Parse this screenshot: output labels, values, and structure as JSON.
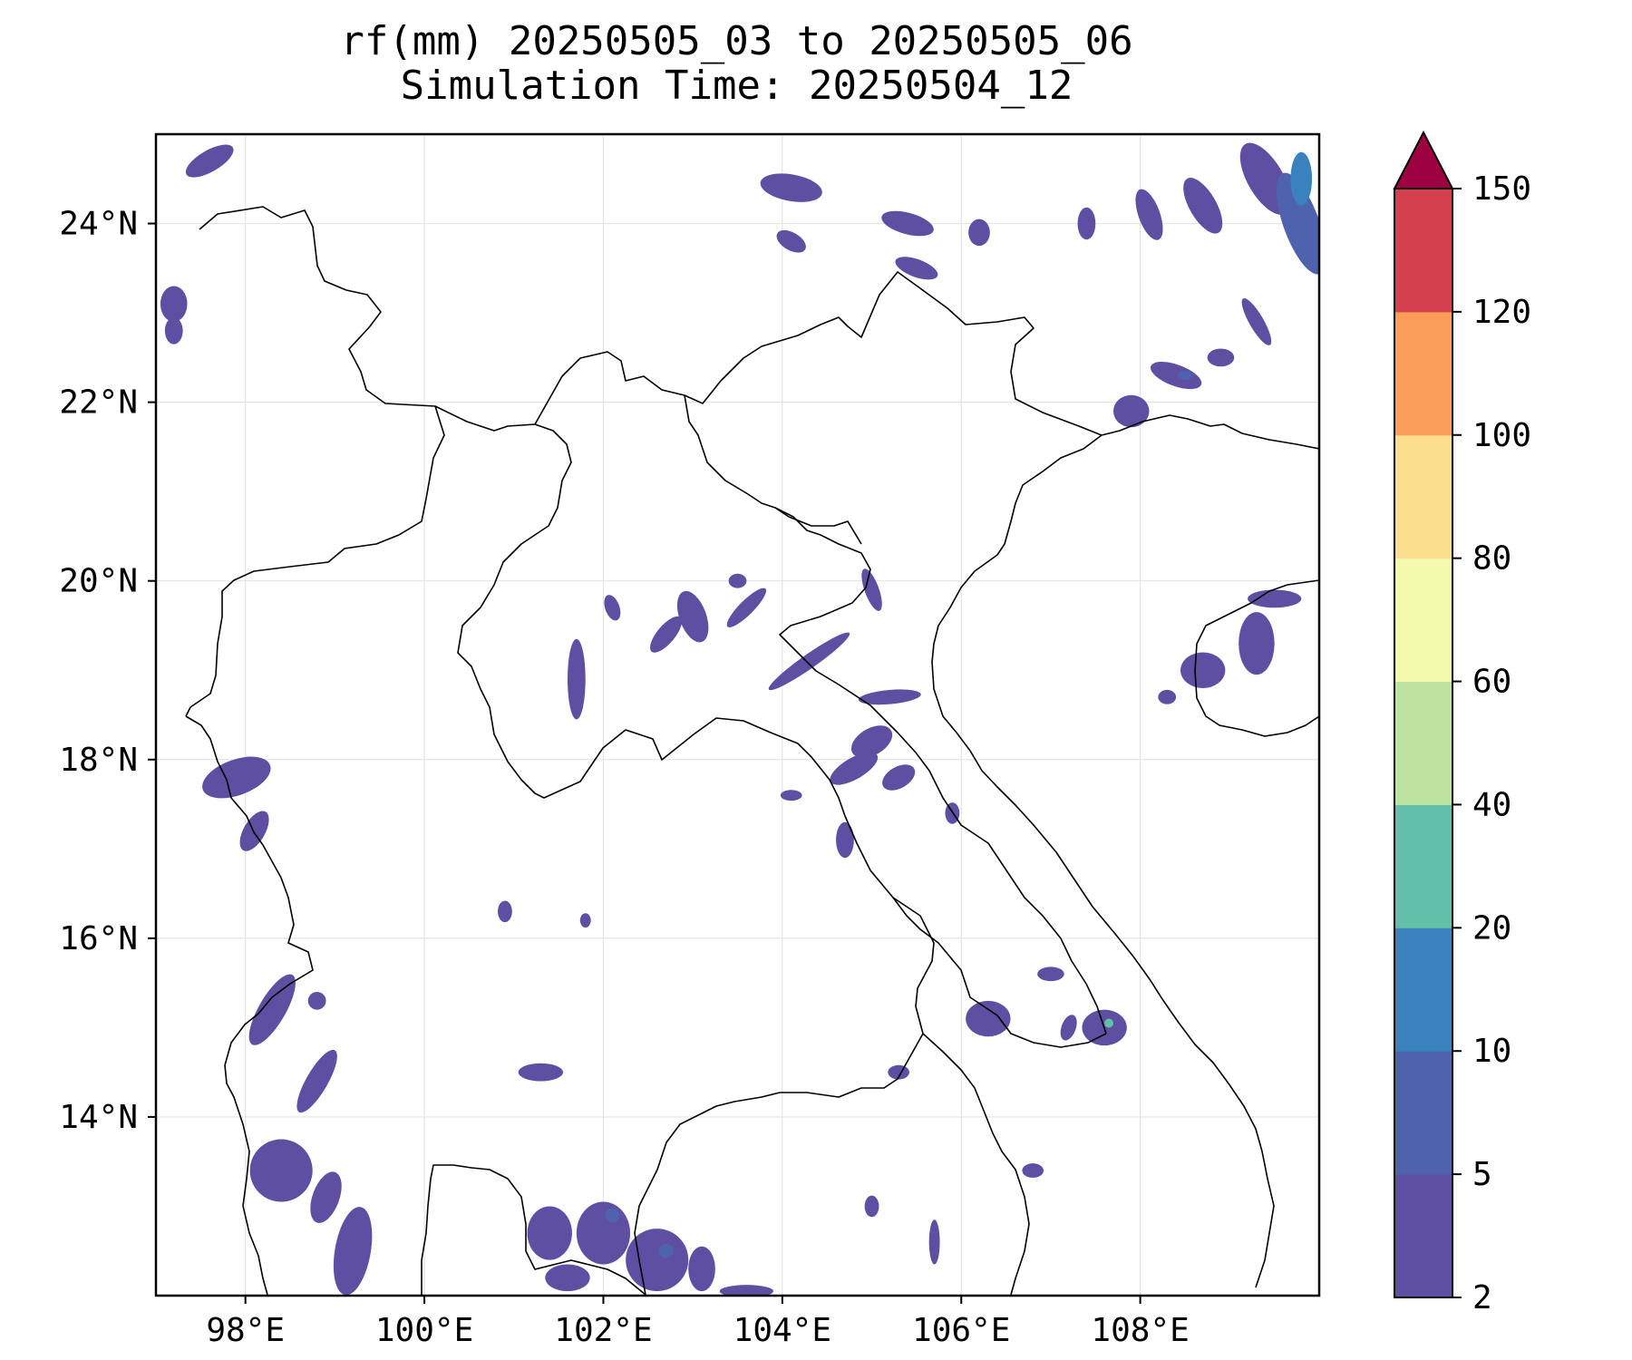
{
  "title": {
    "line1": "rf(mm) 20250505_03 to 20250505_06",
    "line2": "Simulation Time: 20250504_12"
  },
  "map": {
    "lon_range": [
      97.0,
      110.0
    ],
    "lat_range": [
      12.0,
      25.0
    ],
    "x_ticks": [
      {
        "value": 98,
        "label": "98°E"
      },
      {
        "value": 100,
        "label": "100°E"
      },
      {
        "value": 102,
        "label": "102°E"
      },
      {
        "value": 104,
        "label": "104°E"
      },
      {
        "value": 106,
        "label": "106°E"
      },
      {
        "value": 108,
        "label": "108°E"
      }
    ],
    "y_ticks": [
      {
        "value": 14,
        "label": "14°N"
      },
      {
        "value": 16,
        "label": "16°N"
      },
      {
        "value": 18,
        "label": "18°N"
      },
      {
        "value": 20,
        "label": "20°N"
      },
      {
        "value": 22,
        "label": "22°N"
      },
      {
        "value": 24,
        "label": "24°N"
      }
    ],
    "gridlines": true
  },
  "colorbar": {
    "levels": [
      {
        "label": "2",
        "color": "#5e4fa2"
      },
      {
        "label": "5",
        "color": "#4f62ad"
      },
      {
        "label": "10",
        "color": "#3a82bd"
      },
      {
        "label": "20",
        "color": "#62bfa8"
      },
      {
        "label": "40",
        "color": "#bde3a1"
      },
      {
        "label": "60",
        "color": "#f3faae"
      },
      {
        "label": "80",
        "color": "#fbde8c"
      },
      {
        "label": "100",
        "color": "#f99d59"
      },
      {
        "label": "120",
        "color": "#d5404e"
      }
    ],
    "top_label": "150",
    "extend_color": "#9e0142"
  },
  "rain_cells": [
    {
      "lon": 104.1,
      "lat": 24.4,
      "rx": 0.35,
      "ry": 0.15,
      "angle": 10,
      "level": 0
    },
    {
      "lon": 104.1,
      "lat": 23.8,
      "rx": 0.18,
      "ry": 0.1,
      "angle": 30,
      "level": 0
    },
    {
      "lon": 105.4,
      "lat": 24.0,
      "rx": 0.3,
      "ry": 0.12,
      "angle": 15,
      "level": 0
    },
    {
      "lon": 105.5,
      "lat": 23.5,
      "rx": 0.25,
      "ry": 0.1,
      "angle": 20,
      "level": 0
    },
    {
      "lon": 106.2,
      "lat": 23.9,
      "rx": 0.12,
      "ry": 0.15,
      "angle": 0,
      "level": 0
    },
    {
      "lon": 107.4,
      "lat": 24.0,
      "rx": 0.1,
      "ry": 0.18,
      "angle": 0,
      "level": 0
    },
    {
      "lon": 108.1,
      "lat": 24.1,
      "rx": 0.12,
      "ry": 0.3,
      "angle": -20,
      "level": 0
    },
    {
      "lon": 108.7,
      "lat": 24.2,
      "rx": 0.15,
      "ry": 0.35,
      "angle": -30,
      "level": 0
    },
    {
      "lon": 109.4,
      "lat": 24.5,
      "rx": 0.2,
      "ry": 0.45,
      "angle": -30,
      "level": 0
    },
    {
      "lon": 109.8,
      "lat": 24.0,
      "rx": 0.2,
      "ry": 0.6,
      "angle": -20,
      "level": 1
    },
    {
      "lon": 109.8,
      "lat": 24.5,
      "rx": 0.12,
      "ry": 0.3,
      "angle": 0,
      "level": 2
    },
    {
      "lon": 109.3,
      "lat": 22.9,
      "rx": 0.08,
      "ry": 0.3,
      "angle": -30,
      "level": 0
    },
    {
      "lon": 108.9,
      "lat": 22.5,
      "rx": 0.15,
      "ry": 0.1,
      "angle": 0,
      "level": 0
    },
    {
      "lon": 108.4,
      "lat": 22.3,
      "rx": 0.3,
      "ry": 0.12,
      "angle": 20,
      "level": 0
    },
    {
      "lon": 108.5,
      "lat": 22.3,
      "rx": 0.08,
      "ry": 0.05,
      "angle": 0,
      "level": 1
    },
    {
      "lon": 107.9,
      "lat": 21.9,
      "rx": 0.2,
      "ry": 0.18,
      "angle": 0,
      "level": 0
    },
    {
      "lon": 97.6,
      "lat": 24.7,
      "rx": 0.3,
      "ry": 0.12,
      "angle": -30,
      "level": 0
    },
    {
      "lon": 97.2,
      "lat": 23.1,
      "rx": 0.15,
      "ry": 0.2,
      "angle": 0,
      "level": 0
    },
    {
      "lon": 97.2,
      "lat": 22.8,
      "rx": 0.1,
      "ry": 0.15,
      "angle": 0,
      "level": 0
    },
    {
      "lon": 102.1,
      "lat": 19.7,
      "rx": 0.08,
      "ry": 0.15,
      "angle": -20,
      "level": 0
    },
    {
      "lon": 101.7,
      "lat": 18.9,
      "rx": 0.1,
      "ry": 0.45,
      "angle": 0,
      "level": 0
    },
    {
      "lon": 102.7,
      "lat": 19.4,
      "rx": 0.25,
      "ry": 0.1,
      "angle": -50,
      "level": 0
    },
    {
      "lon": 103.0,
      "lat": 19.6,
      "rx": 0.15,
      "ry": 0.3,
      "angle": -20,
      "level": 0
    },
    {
      "lon": 103.6,
      "lat": 19.7,
      "rx": 0.3,
      "ry": 0.08,
      "angle": -45,
      "level": 0
    },
    {
      "lon": 104.3,
      "lat": 19.1,
      "rx": 0.55,
      "ry": 0.08,
      "angle": -35,
      "level": 0
    },
    {
      "lon": 105.2,
      "lat": 18.7,
      "rx": 0.35,
      "ry": 0.08,
      "angle": -5,
      "level": 0
    },
    {
      "lon": 105.0,
      "lat": 18.2,
      "rx": 0.25,
      "ry": 0.15,
      "angle": -30,
      "level": 0
    },
    {
      "lon": 104.8,
      "lat": 17.9,
      "rx": 0.3,
      "ry": 0.12,
      "angle": -30,
      "level": 0
    },
    {
      "lon": 105.3,
      "lat": 17.8,
      "rx": 0.2,
      "ry": 0.12,
      "angle": -30,
      "level": 0
    },
    {
      "lon": 104.1,
      "lat": 17.6,
      "rx": 0.12,
      "ry": 0.06,
      "angle": 0,
      "level": 0
    },
    {
      "lon": 104.7,
      "lat": 17.1,
      "rx": 0.1,
      "ry": 0.2,
      "angle": 0,
      "level": 0
    },
    {
      "lon": 105.9,
      "lat": 17.4,
      "rx": 0.08,
      "ry": 0.12,
      "angle": 0,
      "level": 0
    },
    {
      "lon": 103.5,
      "lat": 20.0,
      "rx": 0.1,
      "ry": 0.08,
      "angle": 0,
      "level": 0
    },
    {
      "lon": 105.0,
      "lat": 19.9,
      "rx": 0.08,
      "ry": 0.25,
      "angle": -20,
      "level": 0
    },
    {
      "lon": 97.9,
      "lat": 17.8,
      "rx": 0.4,
      "ry": 0.2,
      "angle": -20,
      "level": 0
    },
    {
      "lon": 98.1,
      "lat": 17.2,
      "rx": 0.12,
      "ry": 0.25,
      "angle": 30,
      "level": 0
    },
    {
      "lon": 98.3,
      "lat": 15.2,
      "rx": 0.15,
      "ry": 0.45,
      "angle": 30,
      "level": 0
    },
    {
      "lon": 98.8,
      "lat": 14.4,
      "rx": 0.12,
      "ry": 0.4,
      "angle": 30,
      "level": 0
    },
    {
      "lon": 98.4,
      "lat": 13.4,
      "rx": 0.35,
      "ry": 0.35,
      "angle": 0,
      "level": 0
    },
    {
      "lon": 98.9,
      "lat": 13.1,
      "rx": 0.15,
      "ry": 0.3,
      "angle": 20,
      "level": 0
    },
    {
      "lon": 99.2,
      "lat": 12.5,
      "rx": 0.2,
      "ry": 0.5,
      "angle": 10,
      "level": 0
    },
    {
      "lon": 98.8,
      "lat": 15.3,
      "rx": 0.1,
      "ry": 0.1,
      "angle": 0,
      "level": 0
    },
    {
      "lon": 101.3,
      "lat": 14.5,
      "rx": 0.25,
      "ry": 0.1,
      "angle": 0,
      "level": 0
    },
    {
      "lon": 101.4,
      "lat": 12.7,
      "rx": 0.25,
      "ry": 0.3,
      "angle": 0,
      "level": 0
    },
    {
      "lon": 102.0,
      "lat": 12.7,
      "rx": 0.3,
      "ry": 0.35,
      "angle": 0,
      "level": 0
    },
    {
      "lon": 102.1,
      "lat": 12.9,
      "rx": 0.08,
      "ry": 0.08,
      "angle": 0,
      "level": 1
    },
    {
      "lon": 102.6,
      "lat": 12.4,
      "rx": 0.35,
      "ry": 0.35,
      "angle": 0,
      "level": 0
    },
    {
      "lon": 102.7,
      "lat": 12.5,
      "rx": 0.08,
      "ry": 0.08,
      "angle": 0,
      "level": 1
    },
    {
      "lon": 103.1,
      "lat": 12.3,
      "rx": 0.15,
      "ry": 0.25,
      "angle": 0,
      "level": 0
    },
    {
      "lon": 101.6,
      "lat": 12.2,
      "rx": 0.25,
      "ry": 0.15,
      "angle": 0,
      "level": 0
    },
    {
      "lon": 103.6,
      "lat": 12.05,
      "rx": 0.3,
      "ry": 0.07,
      "angle": 0,
      "level": 0
    },
    {
      "lon": 106.3,
      "lat": 15.1,
      "rx": 0.25,
      "ry": 0.2,
      "angle": 0,
      "level": 0
    },
    {
      "lon": 107.6,
      "lat": 15.0,
      "rx": 0.25,
      "ry": 0.2,
      "angle": 0,
      "level": 0
    },
    {
      "lon": 107.65,
      "lat": 15.05,
      "rx": 0.05,
      "ry": 0.05,
      "angle": 0,
      "level": 3
    },
    {
      "lon": 107.2,
      "lat": 15.0,
      "rx": 0.08,
      "ry": 0.15,
      "angle": 20,
      "level": 0
    },
    {
      "lon": 107.0,
      "lat": 15.6,
      "rx": 0.15,
      "ry": 0.08,
      "angle": 0,
      "level": 0
    },
    {
      "lon": 108.7,
      "lat": 19.0,
      "rx": 0.25,
      "ry": 0.2,
      "angle": 0,
      "level": 0
    },
    {
      "lon": 109.3,
      "lat": 19.3,
      "rx": 0.2,
      "ry": 0.35,
      "angle": 0,
      "level": 0
    },
    {
      "lon": 109.5,
      "lat": 19.8,
      "rx": 0.3,
      "ry": 0.1,
      "angle": 0,
      "level": 0
    },
    {
      "lon": 108.3,
      "lat": 18.7,
      "rx": 0.1,
      "ry": 0.08,
      "angle": 0,
      "level": 0
    },
    {
      "lon": 106.8,
      "lat": 13.4,
      "rx": 0.12,
      "ry": 0.08,
      "angle": 0,
      "level": 0
    },
    {
      "lon": 105.0,
      "lat": 13.0,
      "rx": 0.08,
      "ry": 0.12,
      "angle": 0,
      "level": 0
    },
    {
      "lon": 105.7,
      "lat": 12.6,
      "rx": 0.06,
      "ry": 0.25,
      "angle": 0,
      "level": 0
    },
    {
      "lon": 100.9,
      "lat": 16.3,
      "rx": 0.08,
      "ry": 0.12,
      "angle": 0,
      "level": 0
    },
    {
      "lon": 101.8,
      "lat": 16.2,
      "rx": 0.06,
      "ry": 0.08,
      "angle": 0,
      "level": 0
    },
    {
      "lon": 105.3,
      "lat": 14.5,
      "rx": 0.12,
      "ry": 0.08,
      "angle": 0,
      "level": 0
    }
  ]
}
